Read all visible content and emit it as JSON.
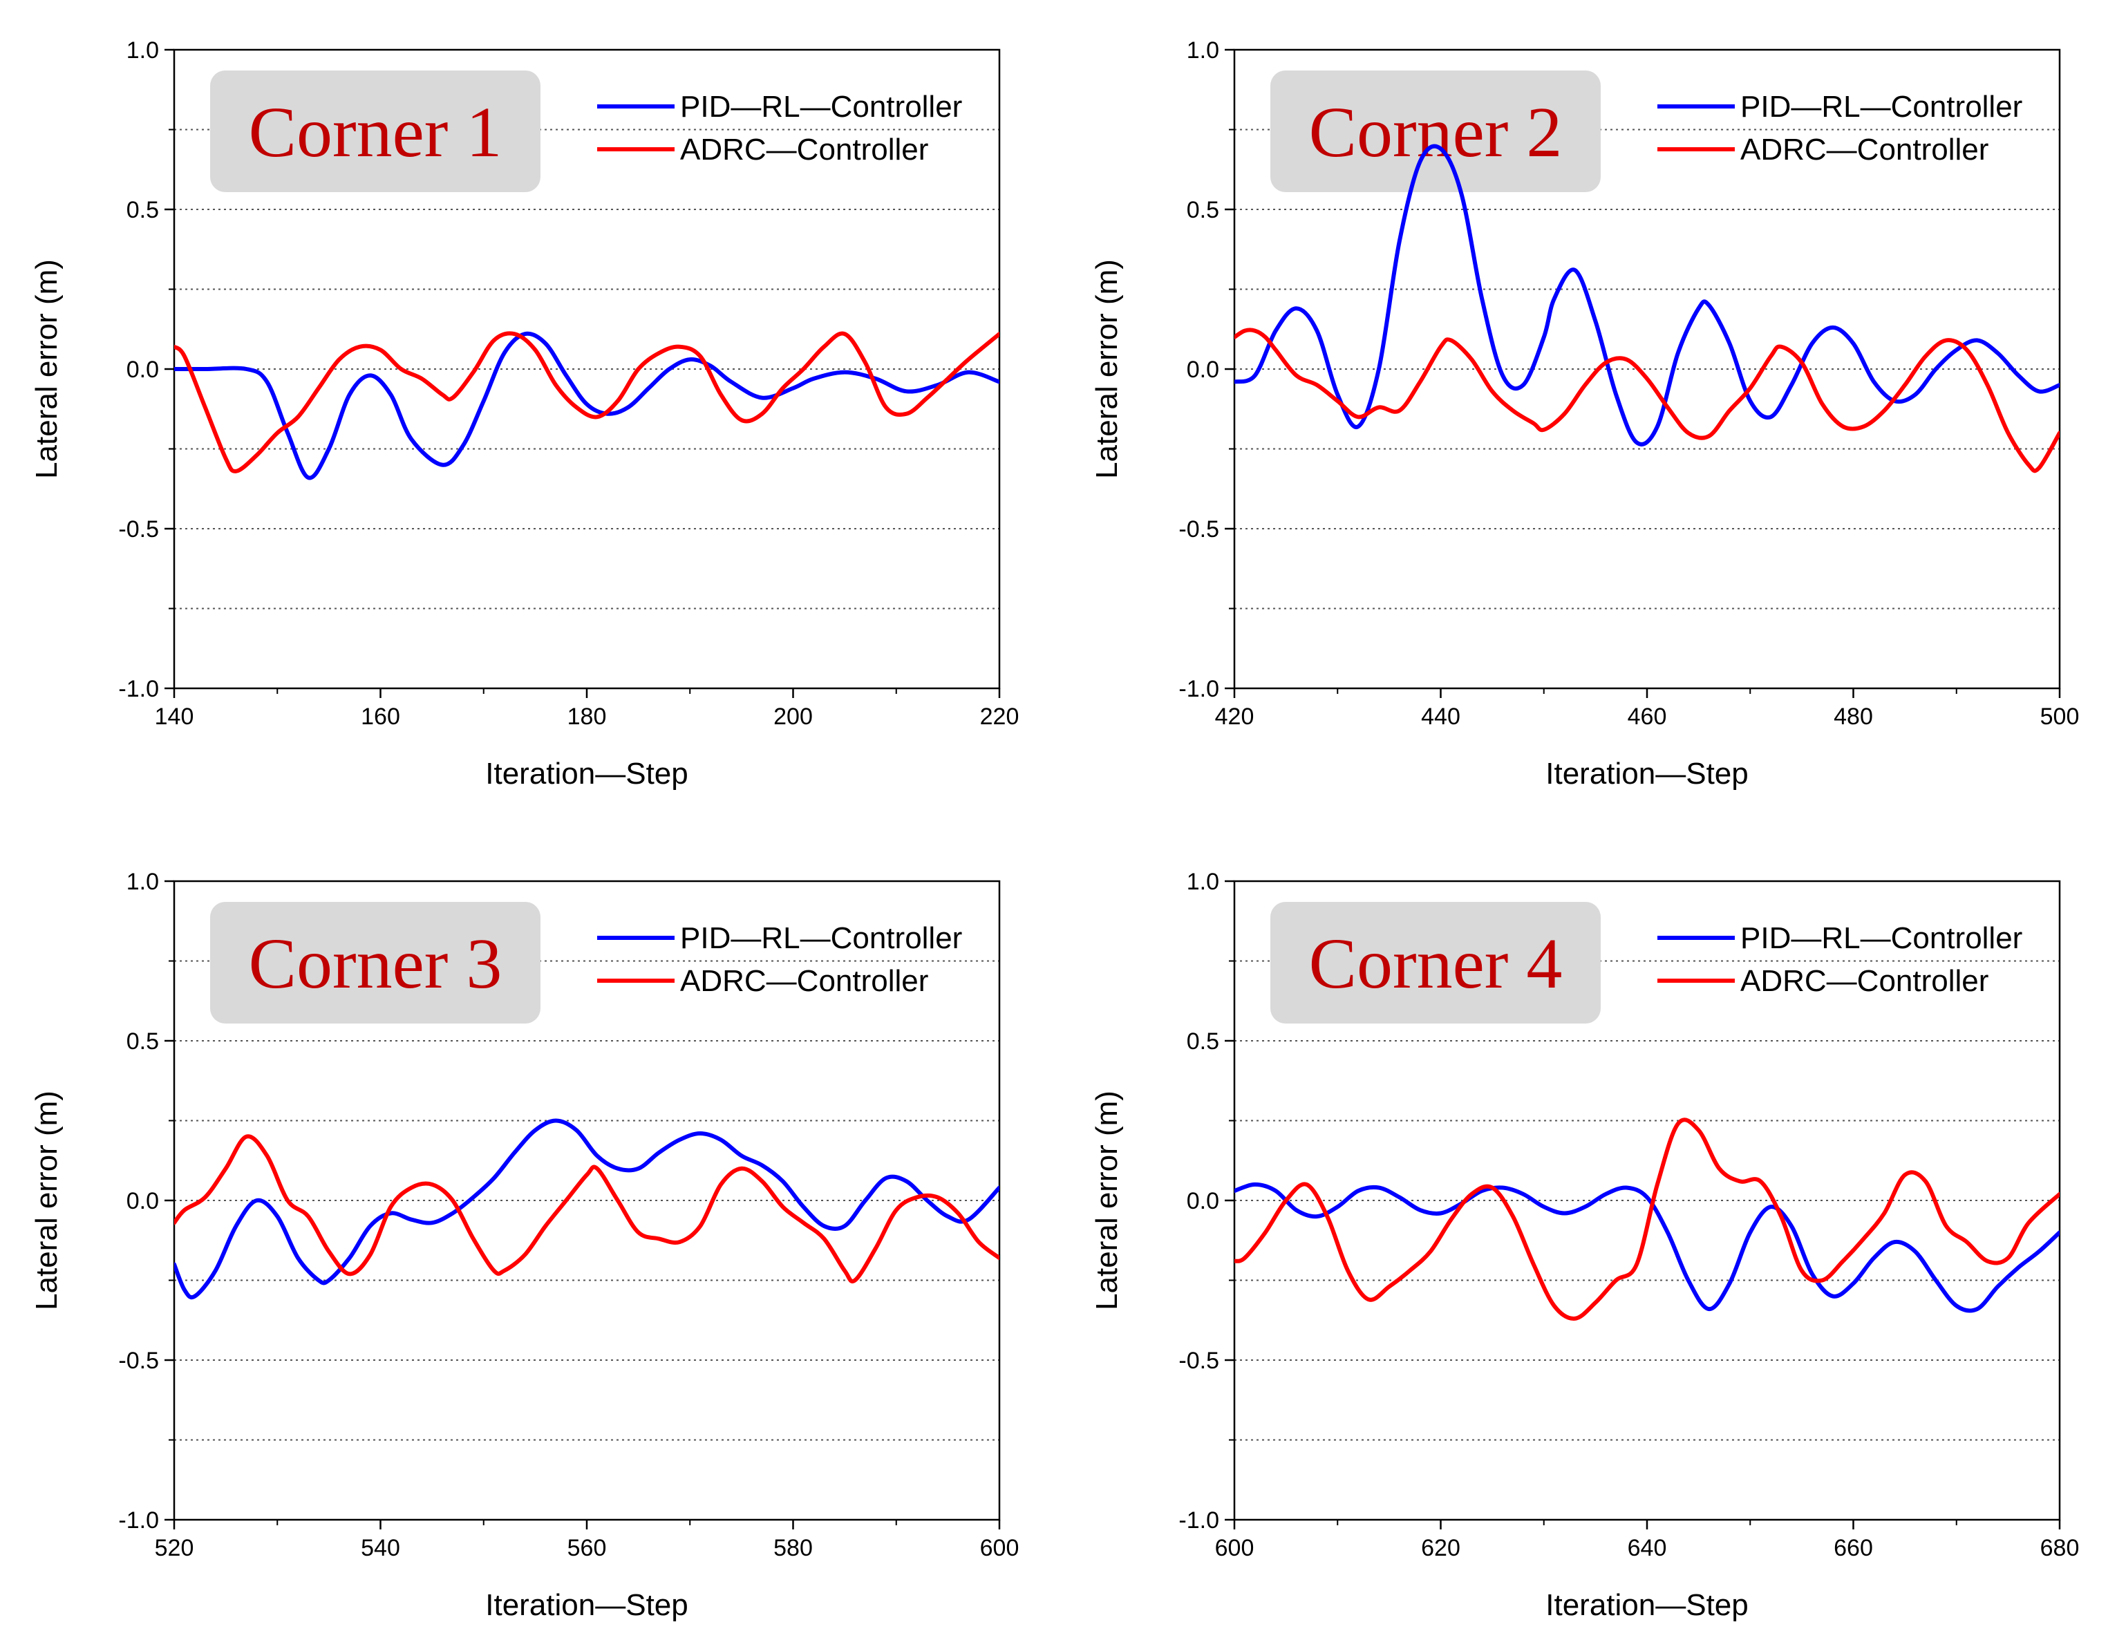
{
  "colors": {
    "pid": "#0000ff",
    "adrc": "#ff0000",
    "corner_label": "#c00000",
    "corner_box": "#d9d9d9",
    "grid": "#555555"
  },
  "chart_data": [
    {
      "type": "line",
      "title": "Corner 1",
      "xlabel": "Iteration—Step",
      "ylabel": "Lateral error (m)",
      "xlim": [
        140,
        220
      ],
      "ylim": [
        -1.0,
        1.0
      ],
      "xticks": [
        140,
        160,
        180,
        200,
        220
      ],
      "xtick_labels": [
        "140",
        "160",
        "180",
        "200",
        "220"
      ],
      "yticks": [
        -1.0,
        -0.5,
        0.0,
        0.5,
        1.0
      ],
      "ytick_labels": [
        "-1.0",
        "-0.5",
        "0.0",
        "0.5",
        "1.0"
      ],
      "grid": "dotted horizontal",
      "legend_position": "top-right",
      "series": [
        {
          "name": "PID—RL—Controller",
          "color": "#0000ff",
          "x": [
            140,
            143,
            147,
            149,
            151,
            153,
            155,
            157,
            159,
            161,
            163,
            166,
            168,
            170,
            172,
            174,
            176,
            178,
            180,
            182,
            184,
            186,
            188,
            190,
            192,
            194,
            197,
            200,
            202,
            205,
            208,
            211,
            214,
            217,
            220
          ],
          "y": [
            0.0,
            0.0,
            0.0,
            -0.04,
            -0.2,
            -0.34,
            -0.25,
            -0.08,
            -0.02,
            -0.08,
            -0.22,
            -0.3,
            -0.24,
            -0.1,
            0.05,
            0.11,
            0.08,
            -0.02,
            -0.11,
            -0.14,
            -0.12,
            -0.06,
            0.0,
            0.03,
            0.01,
            -0.04,
            -0.09,
            -0.06,
            -0.03,
            -0.01,
            -0.03,
            -0.07,
            -0.05,
            -0.01,
            -0.04
          ]
        },
        {
          "name": "ADRC—Controller",
          "color": "#ff0000",
          "x": [
            140,
            141,
            143,
            145,
            146,
            148,
            150,
            152,
            154,
            156,
            158,
            160,
            162,
            164,
            166,
            167,
            169,
            171,
            173,
            175,
            177,
            179,
            181,
            183,
            185,
            187,
            189,
            191,
            193,
            195,
            197,
            199,
            201,
            203,
            205,
            207,
            209,
            211,
            213,
            215,
            217,
            220
          ],
          "y": [
            0.07,
            0.04,
            -0.12,
            -0.28,
            -0.32,
            -0.27,
            -0.2,
            -0.15,
            -0.06,
            0.03,
            0.07,
            0.06,
            0.0,
            -0.03,
            -0.08,
            -0.09,
            -0.01,
            0.09,
            0.11,
            0.06,
            -0.05,
            -0.12,
            -0.15,
            -0.1,
            0.0,
            0.05,
            0.07,
            0.04,
            -0.08,
            -0.16,
            -0.14,
            -0.06,
            0.0,
            0.07,
            0.11,
            0.02,
            -0.12,
            -0.14,
            -0.09,
            -0.03,
            0.03,
            0.11
          ]
        }
      ]
    },
    {
      "type": "line",
      "title": "Corner 2",
      "xlabel": "Iteration—Step",
      "ylabel": "Lateral error (m)",
      "xlim": [
        420,
        500
      ],
      "ylim": [
        -1.0,
        1.0
      ],
      "xticks": [
        420,
        440,
        460,
        480,
        500
      ],
      "xtick_labels": [
        "420",
        "440",
        "460",
        "480",
        "500"
      ],
      "yticks": [
        -1.0,
        -0.5,
        0.0,
        0.5,
        1.0
      ],
      "ytick_labels": [
        "-1.0",
        "-0.5",
        "0.0",
        "0.5",
        "1.0"
      ],
      "grid": "dotted horizontal",
      "legend_position": "top-right",
      "series": [
        {
          "name": "PID—RL—Controller",
          "color": "#0000ff",
          "x": [
            420,
            422,
            424,
            426,
            428,
            430,
            432,
            434,
            436,
            438,
            440,
            442,
            444,
            446,
            448,
            450,
            451,
            453,
            455,
            457,
            459,
            461,
            463,
            465,
            466,
            468,
            470,
            472,
            474,
            476,
            478,
            480,
            482,
            484,
            486,
            488,
            490,
            492,
            494,
            496,
            498,
            500
          ],
          "y": [
            -0.04,
            -0.02,
            0.12,
            0.19,
            0.12,
            -0.08,
            -0.18,
            0.0,
            0.4,
            0.65,
            0.69,
            0.55,
            0.22,
            -0.02,
            -0.05,
            0.1,
            0.22,
            0.31,
            0.15,
            -0.08,
            -0.23,
            -0.18,
            0.05,
            0.19,
            0.2,
            0.08,
            -0.1,
            -0.15,
            -0.05,
            0.08,
            0.13,
            0.08,
            -0.04,
            -0.1,
            -0.08,
            0.0,
            0.06,
            0.09,
            0.05,
            -0.02,
            -0.07,
            -0.05
          ]
        },
        {
          "name": "ADRC—Controller",
          "color": "#ff0000",
          "x": [
            420,
            421,
            422,
            423,
            424,
            426,
            428,
            430,
            432,
            434,
            436,
            438,
            440,
            441,
            443,
            445,
            447,
            449,
            450,
            452,
            454,
            456,
            458,
            460,
            462,
            464,
            466,
            468,
            470,
            472,
            473,
            475,
            477,
            479,
            481,
            483,
            485,
            487,
            489,
            491,
            493,
            495,
            497,
            498,
            500
          ],
          "y": [
            0.1,
            0.12,
            0.12,
            0.1,
            0.06,
            -0.02,
            -0.05,
            -0.1,
            -0.15,
            -0.12,
            -0.13,
            -0.04,
            0.07,
            0.09,
            0.03,
            -0.07,
            -0.13,
            -0.17,
            -0.19,
            -0.14,
            -0.05,
            0.02,
            0.03,
            -0.03,
            -0.12,
            -0.2,
            -0.21,
            -0.13,
            -0.06,
            0.04,
            0.07,
            0.02,
            -0.11,
            -0.18,
            -0.18,
            -0.13,
            -0.05,
            0.04,
            0.09,
            0.06,
            -0.05,
            -0.2,
            -0.3,
            -0.31,
            -0.2
          ]
        }
      ]
    },
    {
      "type": "line",
      "title": "Corner 3",
      "xlabel": "Iteration—Step",
      "ylabel": "Lateral error (m)",
      "xlim": [
        520,
        600
      ],
      "ylim": [
        -1.0,
        1.0
      ],
      "xticks": [
        520,
        540,
        560,
        580,
        600
      ],
      "xtick_labels": [
        "520",
        "540",
        "560",
        "580",
        "600"
      ],
      "yticks": [
        -1.0,
        -0.5,
        0.0,
        0.5,
        1.0
      ],
      "ytick_labels": [
        "-1.0",
        "-0.5",
        "0.0",
        "0.5",
        "1.0"
      ],
      "grid": "dotted horizontal",
      "legend_position": "top-right",
      "series": [
        {
          "name": "PID—RL—Controller",
          "color": "#0000ff",
          "x": [
            520,
            521,
            522,
            524,
            526,
            528,
            530,
            532,
            534,
            535,
            537,
            539,
            541,
            543,
            545,
            547,
            549,
            551,
            553,
            555,
            557,
            559,
            561,
            563,
            565,
            567,
            569,
            571,
            573,
            575,
            577,
            579,
            581,
            583,
            585,
            587,
            589,
            591,
            593,
            595,
            597,
            600
          ],
          "y": [
            -0.2,
            -0.28,
            -0.3,
            -0.22,
            -0.08,
            0.0,
            -0.05,
            -0.18,
            -0.25,
            -0.25,
            -0.18,
            -0.08,
            -0.04,
            -0.06,
            -0.07,
            -0.04,
            0.01,
            0.07,
            0.15,
            0.22,
            0.25,
            0.22,
            0.14,
            0.1,
            0.1,
            0.15,
            0.19,
            0.21,
            0.19,
            0.14,
            0.11,
            0.06,
            -0.02,
            -0.08,
            -0.08,
            0.0,
            0.07,
            0.06,
            0.0,
            -0.05,
            -0.06,
            0.04
          ]
        },
        {
          "name": "ADRC—Controller",
          "color": "#ff0000",
          "x": [
            520,
            521,
            523,
            525,
            527,
            529,
            531,
            533,
            535,
            537,
            539,
            541,
            543,
            545,
            547,
            549,
            551,
            552,
            554,
            556,
            558,
            560,
            561,
            563,
            565,
            567,
            569,
            571,
            573,
            575,
            577,
            579,
            581,
            583,
            585,
            586,
            588,
            590,
            592,
            594,
            596,
            598,
            600
          ],
          "y": [
            -0.07,
            -0.03,
            0.01,
            0.1,
            0.2,
            0.14,
            0.0,
            -0.05,
            -0.16,
            -0.23,
            -0.17,
            -0.02,
            0.04,
            0.05,
            0.0,
            -0.12,
            -0.22,
            -0.22,
            -0.17,
            -0.08,
            0.0,
            0.08,
            0.1,
            0.0,
            -0.1,
            -0.12,
            -0.13,
            -0.08,
            0.05,
            0.1,
            0.06,
            -0.02,
            -0.07,
            -0.12,
            -0.22,
            -0.25,
            -0.15,
            -0.03,
            0.01,
            0.01,
            -0.04,
            -0.13,
            -0.18
          ]
        }
      ]
    },
    {
      "type": "line",
      "title": "Corner 4",
      "xlabel": "Iteration—Step",
      "ylabel": "Lateral error (m)",
      "xlim": [
        600,
        680
      ],
      "ylim": [
        -1.0,
        1.0
      ],
      "xticks": [
        600,
        620,
        640,
        660,
        680
      ],
      "xtick_labels": [
        "600",
        "620",
        "640",
        "660",
        "680"
      ],
      "yticks": [
        -1.0,
        -0.5,
        0.0,
        0.5,
        1.0
      ],
      "ytick_labels": [
        "-1.0",
        "-0.5",
        "0.0",
        "0.5",
        "1.0"
      ],
      "grid": "dotted horizontal",
      "legend_position": "top-right",
      "series": [
        {
          "name": "PID—RL—Controller",
          "color": "#0000ff",
          "x": [
            600,
            602,
            604,
            606,
            608,
            610,
            612,
            614,
            616,
            618,
            620,
            622,
            624,
            626,
            628,
            630,
            632,
            634,
            636,
            638,
            640,
            642,
            644,
            646,
            648,
            650,
            652,
            654,
            656,
            658,
            660,
            662,
            664,
            666,
            668,
            670,
            672,
            674,
            676,
            678,
            680
          ],
          "y": [
            0.03,
            0.05,
            0.03,
            -0.03,
            -0.05,
            -0.02,
            0.03,
            0.04,
            0.01,
            -0.03,
            -0.04,
            -0.01,
            0.03,
            0.04,
            0.02,
            -0.02,
            -0.04,
            -0.02,
            0.02,
            0.04,
            0.01,
            -0.1,
            -0.25,
            -0.34,
            -0.26,
            -0.1,
            -0.02,
            -0.08,
            -0.23,
            -0.3,
            -0.26,
            -0.18,
            -0.13,
            -0.16,
            -0.25,
            -0.33,
            -0.34,
            -0.27,
            -0.21,
            -0.16,
            -0.1
          ]
        },
        {
          "name": "ADRC—Controller",
          "color": "#ff0000",
          "x": [
            600,
            601,
            603,
            605,
            607,
            609,
            611,
            613,
            615,
            617,
            619,
            621,
            623,
            625,
            627,
            629,
            631,
            633,
            635,
            637,
            639,
            641,
            643,
            645,
            647,
            649,
            651,
            653,
            655,
            657,
            659,
            661,
            663,
            665,
            667,
            669,
            671,
            673,
            675,
            677,
            680
          ],
          "y": [
            -0.19,
            -0.18,
            -0.1,
            0.0,
            0.05,
            -0.05,
            -0.22,
            -0.31,
            -0.27,
            -0.22,
            -0.16,
            -0.06,
            0.02,
            0.04,
            -0.05,
            -0.2,
            -0.33,
            -0.37,
            -0.32,
            -0.25,
            -0.2,
            0.05,
            0.24,
            0.22,
            0.1,
            0.06,
            0.06,
            -0.05,
            -0.22,
            -0.25,
            -0.19,
            -0.12,
            -0.04,
            0.08,
            0.06,
            -0.08,
            -0.13,
            -0.19,
            -0.18,
            -0.07,
            0.02
          ]
        }
      ]
    }
  ]
}
